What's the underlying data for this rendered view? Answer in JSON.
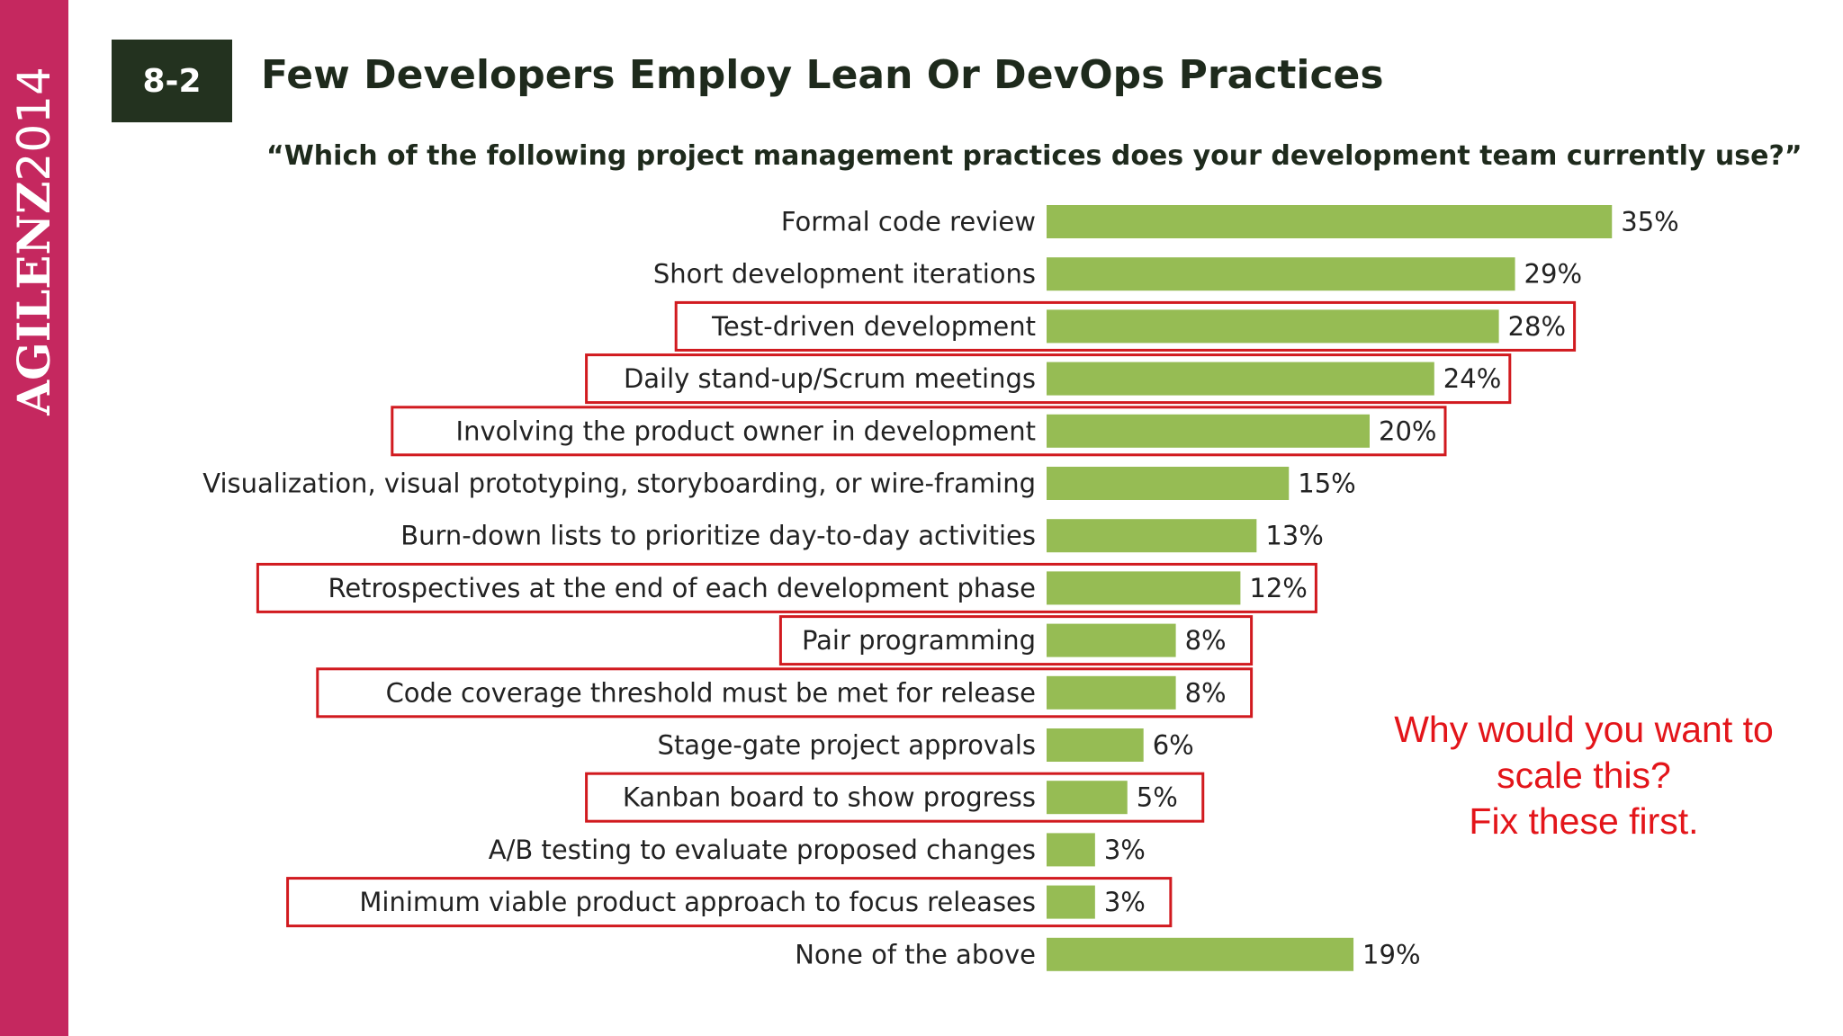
{
  "sidebar": {
    "brand_word": "AGILE",
    "brand_n": "NZ",
    "brand_year": "2014",
    "color": "#c5285f"
  },
  "figure": {
    "number": "8-2",
    "title": "Few Developers Employ Lean Or DevOps Practices",
    "question": "“Which of the following project management practices does your development team currently use?”"
  },
  "annotation": {
    "lines": [
      "Why would you want to",
      "scale this?",
      "Fix these first."
    ],
    "color": "#e3151a"
  },
  "chart_data": {
    "type": "bar",
    "orientation": "horizontal",
    "bar_color": "#96bc54",
    "highlight_color": "#d11a1f",
    "value_suffix": "%",
    "categories": [
      "Formal code review",
      "Short development iterations",
      "Test-driven development",
      "Daily stand-up/Scrum meetings",
      "Involving the product owner in development",
      "Visualization, visual prototyping, storyboarding, or wire-framing",
      "Burn-down lists to prioritize day-to-day activities",
      "Retrospectives at the end of each development phase",
      "Pair programming",
      "Code coverage threshold must be met for release",
      "Stage-gate project approvals",
      "Kanban board to show progress",
      "A/B testing to evaluate proposed changes",
      "Minimum viable product approach to focus releases",
      "None of the above"
    ],
    "values": [
      35,
      29,
      28,
      24,
      20,
      15,
      13,
      12,
      8,
      8,
      6,
      5,
      3,
      3,
      19
    ],
    "highlighted": [
      false,
      false,
      true,
      true,
      true,
      false,
      false,
      true,
      true,
      true,
      false,
      true,
      false,
      true,
      false
    ]
  }
}
